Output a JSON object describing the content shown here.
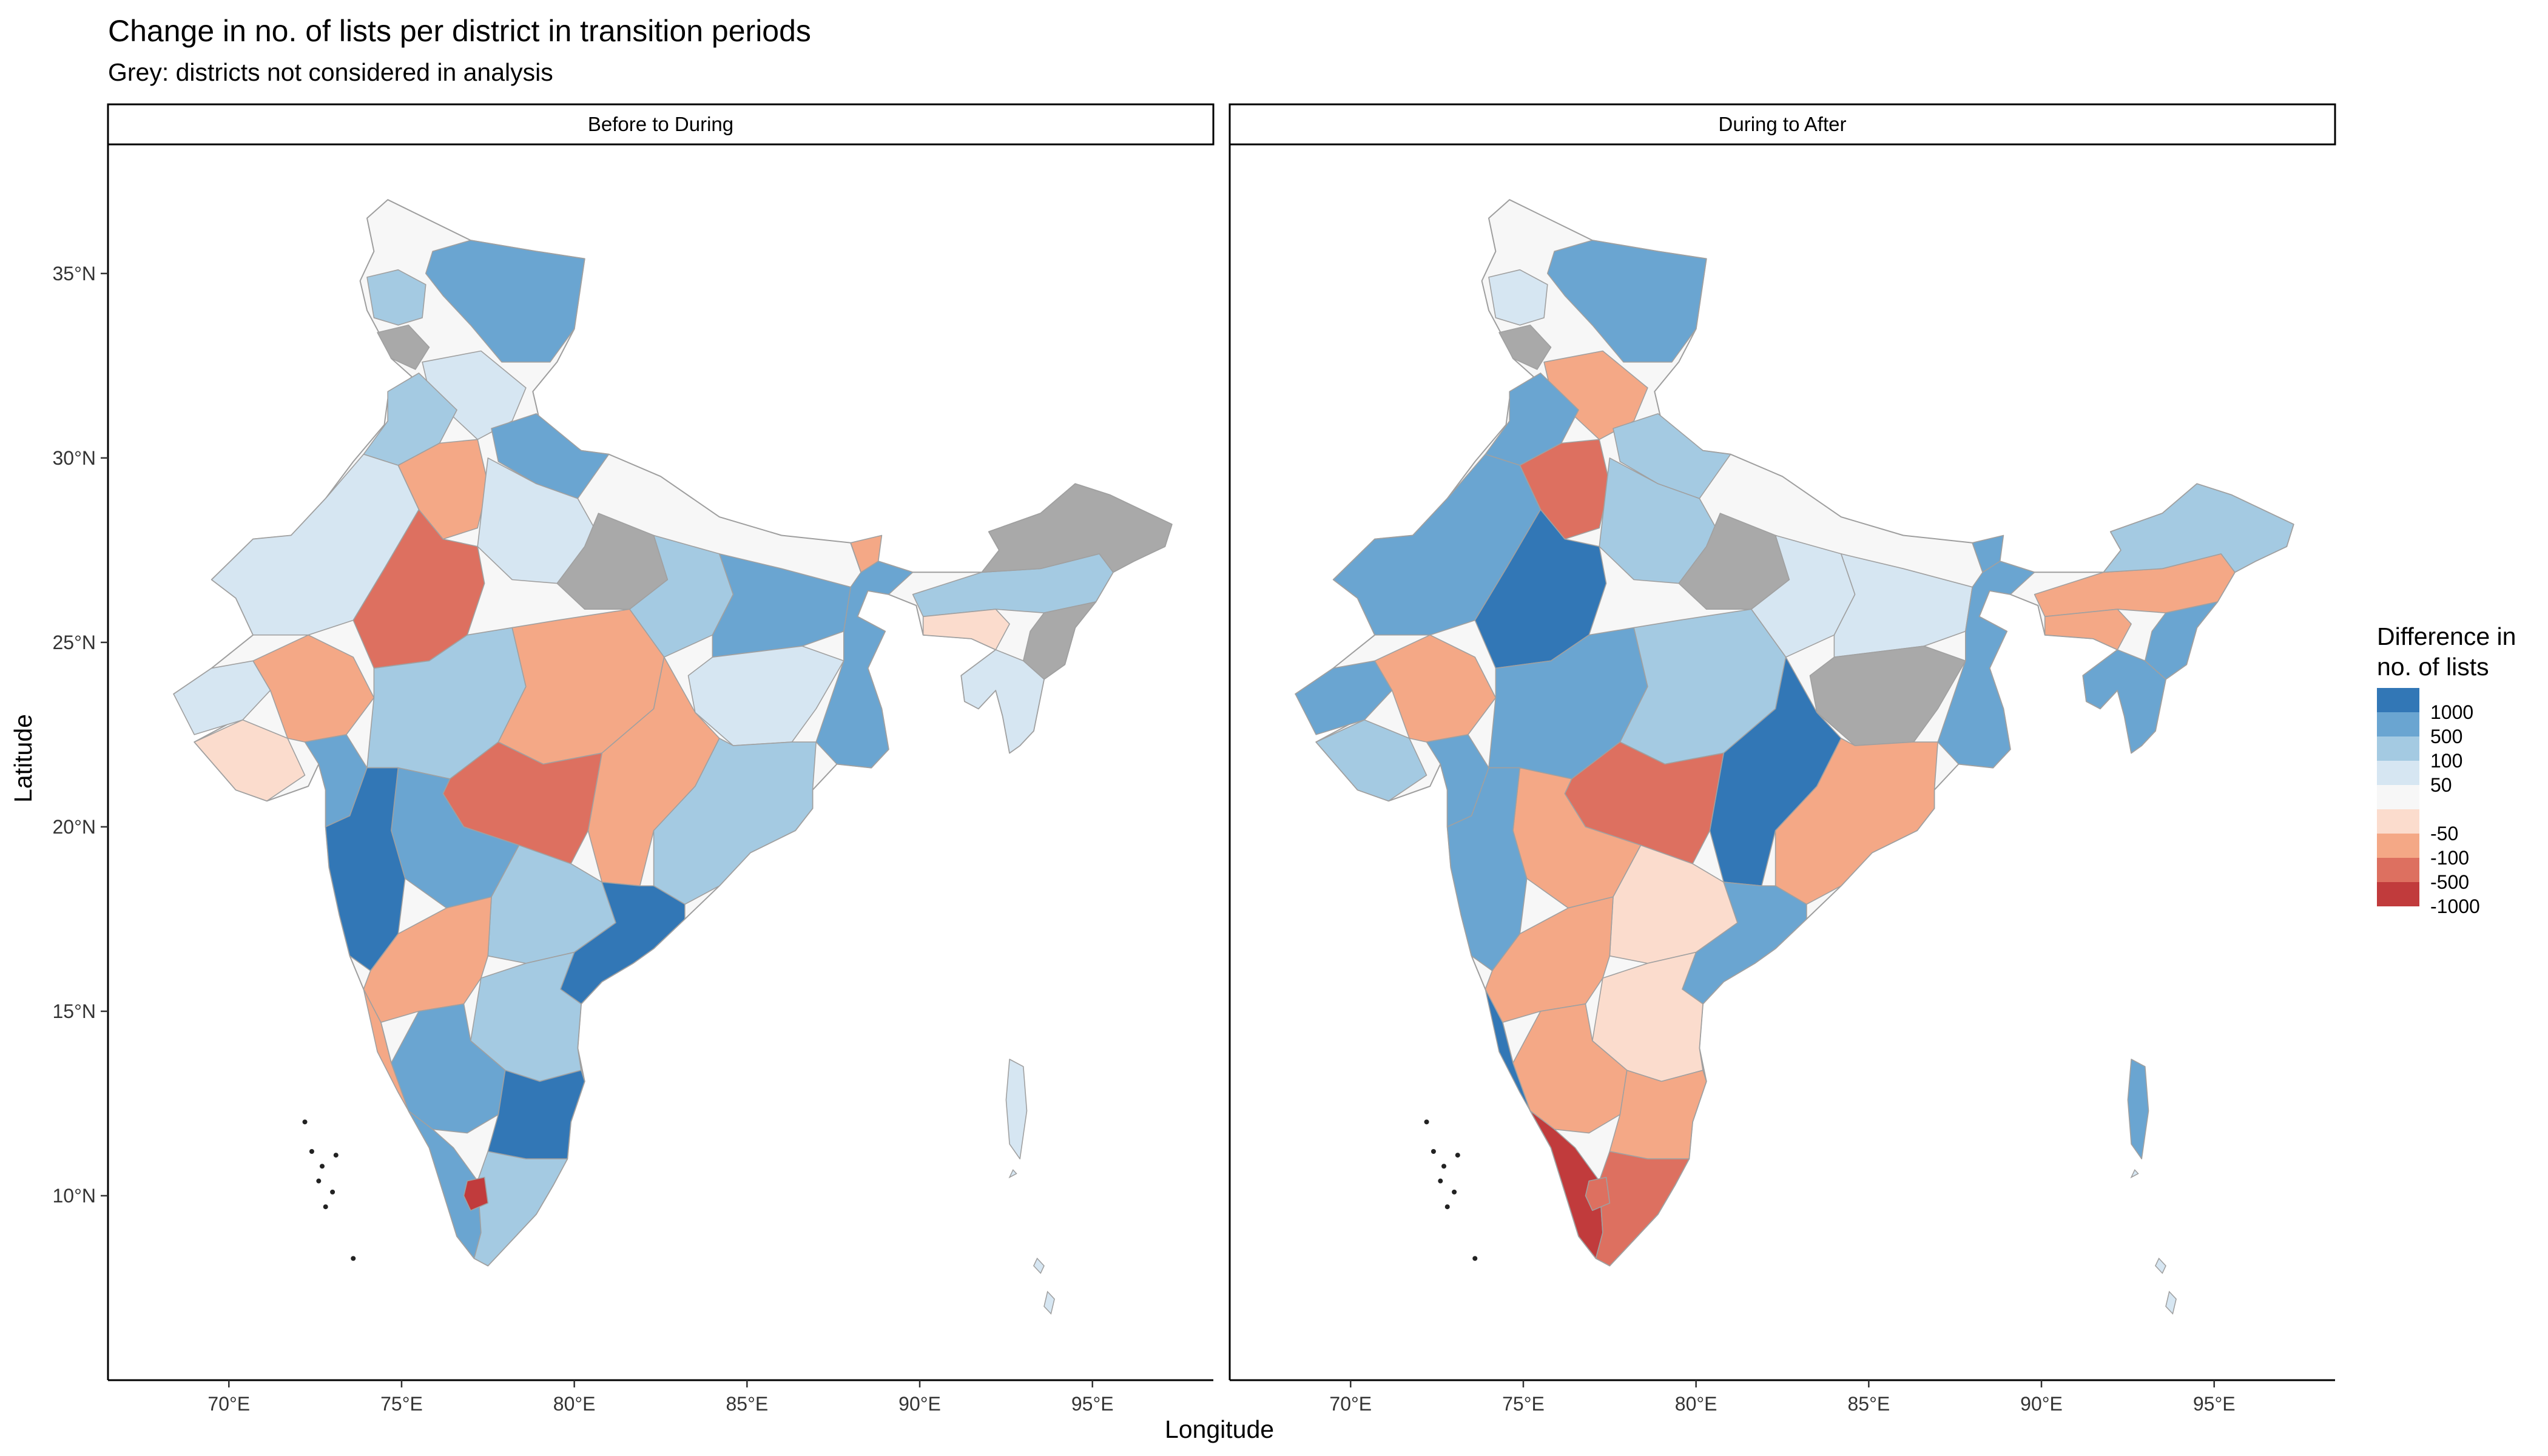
{
  "title": "Change in no. of lists per district in transition periods",
  "subtitle": "Grey: districts not considered in analysis",
  "facets": [
    {
      "label": "Before to During",
      "regions": [
        {
          "name": "Ladakh",
          "cls": "c500"
        },
        {
          "name": "Kashmir valley",
          "cls": "c100"
        },
        {
          "name": "Jammu",
          "cls": "grey"
        },
        {
          "name": "Himachal",
          "cls": "c50"
        },
        {
          "name": "Punjab",
          "cls": "c100"
        },
        {
          "name": "Uttarakhand",
          "cls": "c500"
        },
        {
          "name": "Haryana-Delhi",
          "cls": "cm100"
        },
        {
          "name": "West UP",
          "cls": "c50"
        },
        {
          "name": "Central UP",
          "cls": "grey"
        },
        {
          "name": "East UP",
          "cls": "c100"
        },
        {
          "name": "West Rajasthan",
          "cls": "c50"
        },
        {
          "name": "East Rajasthan",
          "cls": "cm500"
        },
        {
          "name": "Kutch",
          "cls": "c50"
        },
        {
          "name": "Saurashtra",
          "cls": "cm50"
        },
        {
          "name": "North Gujarat",
          "cls": "cm100"
        },
        {
          "name": "South Gujarat",
          "cls": "c500"
        },
        {
          "name": "West MP",
          "cls": "c100"
        },
        {
          "name": "East MP",
          "cls": "cm100"
        },
        {
          "name": "Bihar",
          "cls": "c500"
        },
        {
          "name": "Jharkhand",
          "cls": "c50"
        },
        {
          "name": "West Bengal",
          "cls": "c500"
        },
        {
          "name": "Chhattisgarh",
          "cls": "cm100"
        },
        {
          "name": "Odisha",
          "cls": "c100"
        },
        {
          "name": "Vidarbha",
          "cls": "cm500"
        },
        {
          "name": "Marathwada",
          "cls": "c500"
        },
        {
          "name": "Konkan-Pune",
          "cls": "c1000"
        },
        {
          "name": "Telangana",
          "cls": "c100"
        },
        {
          "name": "Coastal Andhra",
          "cls": "c1000"
        },
        {
          "name": "Rayalaseema",
          "cls": "c100"
        },
        {
          "name": "North Karnataka",
          "cls": "cm100"
        },
        {
          "name": "South Karnataka",
          "cls": "c500"
        },
        {
          "name": "Goa-Coast",
          "cls": "cm100"
        },
        {
          "name": "Kerala",
          "cls": "c500"
        },
        {
          "name": "North Tamil Nadu",
          "cls": "c1000"
        },
        {
          "name": "South Tamil Nadu",
          "cls": "c100"
        },
        {
          "name": "Western Ghats TN",
          "cls": "cm1000"
        },
        {
          "name": "Sikkim",
          "cls": "cm100"
        },
        {
          "name": "Assam",
          "cls": "c100"
        },
        {
          "name": "Arunachal",
          "cls": "grey"
        },
        {
          "name": "Meghalaya",
          "cls": "cm50"
        },
        {
          "name": "Nagaland-Manipur",
          "cls": "grey"
        },
        {
          "name": "Tripura-Mizoram",
          "cls": "c50"
        },
        {
          "name": "Andaman & Nicobar",
          "cls": "c50"
        }
      ]
    },
    {
      "label": "During to After",
      "regions": [
        {
          "name": "Ladakh",
          "cls": "c500"
        },
        {
          "name": "Kashmir valley",
          "cls": "c50"
        },
        {
          "name": "Jammu",
          "cls": "grey"
        },
        {
          "name": "Himachal",
          "cls": "cm100"
        },
        {
          "name": "Punjab",
          "cls": "c500"
        },
        {
          "name": "Uttarakhand",
          "cls": "c100"
        },
        {
          "name": "Haryana-Delhi",
          "cls": "cm500"
        },
        {
          "name": "West UP",
          "cls": "c100"
        },
        {
          "name": "Central UP",
          "cls": "grey"
        },
        {
          "name": "East UP",
          "cls": "c50"
        },
        {
          "name": "West Rajasthan",
          "cls": "c500"
        },
        {
          "name": "East Rajasthan",
          "cls": "c1000"
        },
        {
          "name": "Kutch",
          "cls": "c500"
        },
        {
          "name": "Saurashtra",
          "cls": "c100"
        },
        {
          "name": "North Gujarat",
          "cls": "cm100"
        },
        {
          "name": "South Gujarat",
          "cls": "c500"
        },
        {
          "name": "West MP",
          "cls": "c500"
        },
        {
          "name": "East MP",
          "cls": "c100"
        },
        {
          "name": "Bihar",
          "cls": "c50"
        },
        {
          "name": "Jharkhand",
          "cls": "grey"
        },
        {
          "name": "West Bengal",
          "cls": "c500"
        },
        {
          "name": "Chhattisgarh",
          "cls": "c1000"
        },
        {
          "name": "Odisha",
          "cls": "cm100"
        },
        {
          "name": "Vidarbha",
          "cls": "cm500"
        },
        {
          "name": "Marathwada",
          "cls": "cm100"
        },
        {
          "name": "Konkan-Pune",
          "cls": "c500"
        },
        {
          "name": "Telangana",
          "cls": "cm50"
        },
        {
          "name": "Coastal Andhra",
          "cls": "c500"
        },
        {
          "name": "Rayalaseema",
          "cls": "cm50"
        },
        {
          "name": "North Karnataka",
          "cls": "cm100"
        },
        {
          "name": "South Karnataka",
          "cls": "cm100"
        },
        {
          "name": "Goa-Coast",
          "cls": "c1000"
        },
        {
          "name": "Kerala",
          "cls": "cm1000"
        },
        {
          "name": "North Tamil Nadu",
          "cls": "cm100"
        },
        {
          "name": "South Tamil Nadu",
          "cls": "cm500"
        },
        {
          "name": "Western Ghats TN",
          "cls": "cm500"
        },
        {
          "name": "Sikkim",
          "cls": "c500"
        },
        {
          "name": "Assam",
          "cls": "cm100"
        },
        {
          "name": "Arunachal",
          "cls": "c100"
        },
        {
          "name": "Meghalaya",
          "cls": "cm100"
        },
        {
          "name": "Nagaland-Manipur",
          "cls": "c500"
        },
        {
          "name": "Tripura-Mizoram",
          "cls": "c500"
        },
        {
          "name": "Andaman & Nicobar",
          "cls": "c500"
        }
      ]
    }
  ],
  "axes": {
    "x_title": "Longitude",
    "y_title": "Latitude",
    "x_ticks": [
      {
        "lon": 70,
        "label": "70°E"
      },
      {
        "lon": 75,
        "label": "75°E"
      },
      {
        "lon": 80,
        "label": "80°E"
      },
      {
        "lon": 85,
        "label": "85°E"
      },
      {
        "lon": 90,
        "label": "90°E"
      },
      {
        "lon": 95,
        "label": "95°E"
      }
    ],
    "y_ticks": [
      {
        "lat": 35,
        "label": "35°N"
      },
      {
        "lat": 30,
        "label": "30°N"
      },
      {
        "lat": 25,
        "label": "25°N"
      },
      {
        "lat": 20,
        "label": "20°N"
      },
      {
        "lat": 15,
        "label": "15°N"
      },
      {
        "lat": 10,
        "label": "10°N"
      }
    ],
    "lon_range": [
      66.5,
      98.5
    ],
    "lat_range": [
      5,
      38.5
    ]
  },
  "legend": {
    "title_line1": "Difference in",
    "title_line2": "no. of lists",
    "classes": [
      {
        "key": "c1000",
        "label": "1000",
        "color": "#3277B6"
      },
      {
        "key": "c500",
        "label": "500",
        "color": "#6AA5D1"
      },
      {
        "key": "c100",
        "label": "100",
        "color": "#A4CAE2"
      },
      {
        "key": "c50",
        "label": "50",
        "color": "#D6E6F2"
      },
      {
        "key": "c0",
        "label": "",
        "color": "#F7F7F7"
      },
      {
        "key": "cm50",
        "label": "-50",
        "color": "#FBDCCD"
      },
      {
        "key": "cm100",
        "label": "-100",
        "color": "#F4A886"
      },
      {
        "key": "cm500",
        "label": "-500",
        "color": "#DD7060"
      },
      {
        "key": "cm1000",
        "label": "-1000",
        "color": "#C13B3C"
      }
    ],
    "grey_color": "#A9A9A9"
  }
}
